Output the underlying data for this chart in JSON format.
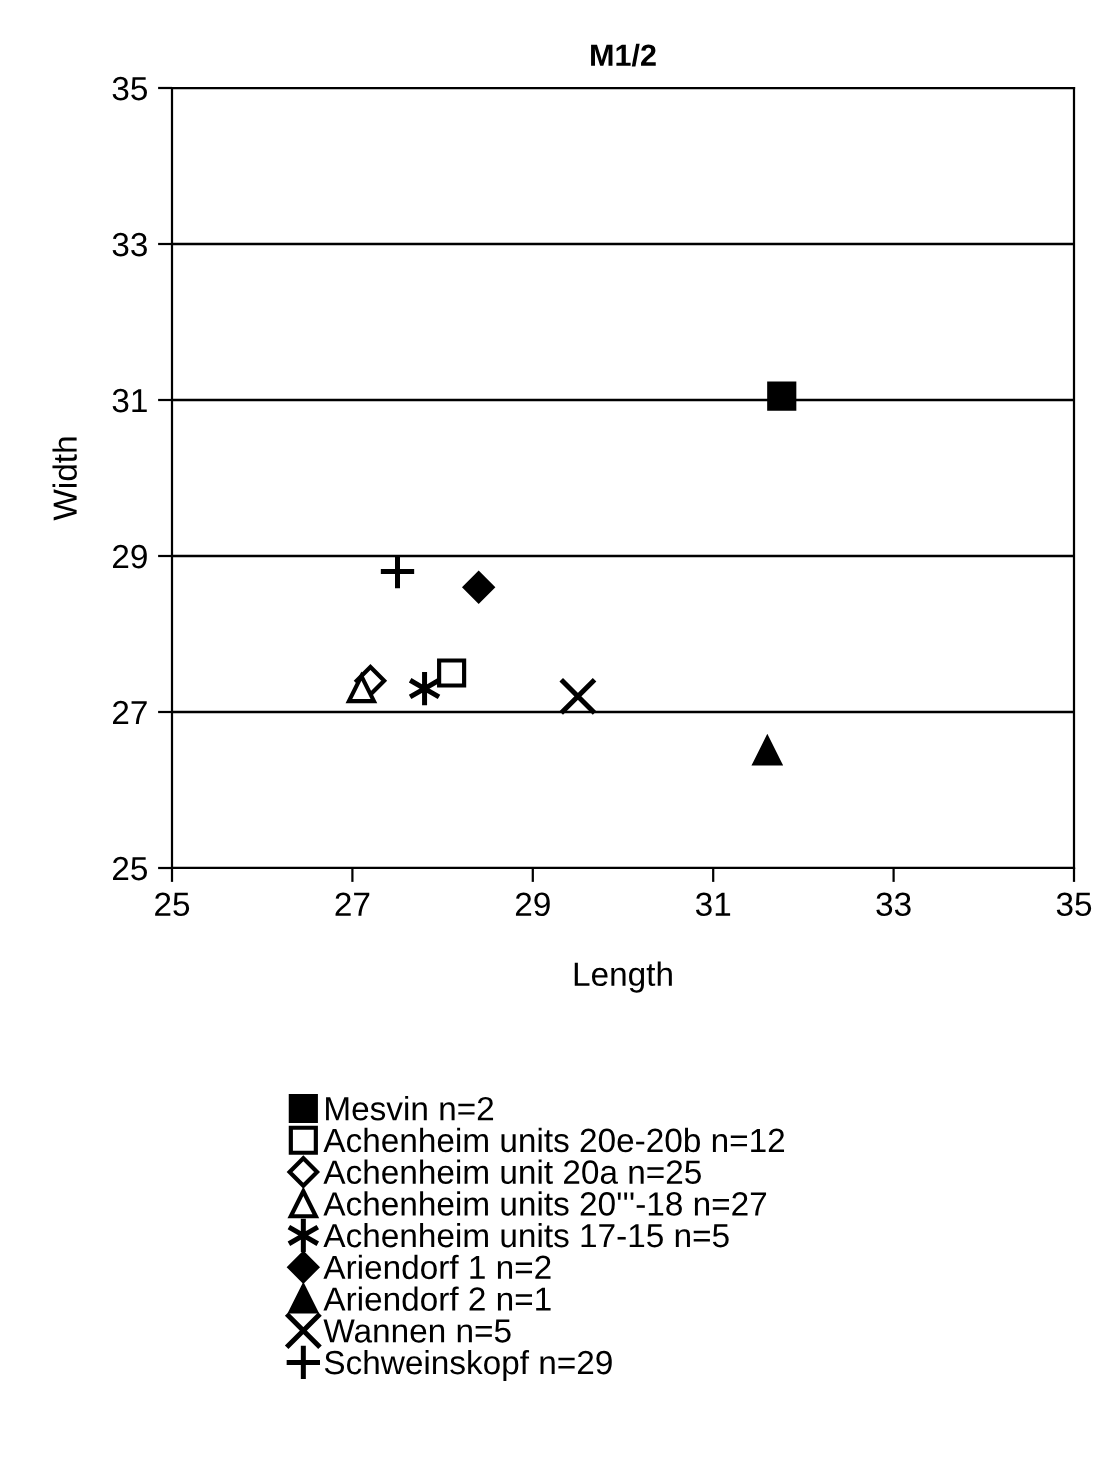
{
  "chart_data": {
    "type": "scatter",
    "title": "M1/2",
    "xlabel": "Length",
    "ylabel": "Width",
    "xlim": [
      25,
      35
    ],
    "ylim": [
      25,
      35
    ],
    "xticks": [
      25,
      27,
      29,
      31,
      33,
      35
    ],
    "yticks": [
      25,
      27,
      29,
      31,
      33,
      35
    ],
    "grid": "y",
    "legend": "bottom",
    "series": [
      {
        "name": "Mesvin n=2",
        "color": "#000000",
        "marker": "square",
        "x": [
          31.76
        ],
        "values": [
          31.05
        ]
      },
      {
        "name": "Achenheim units 20e-20b n=12",
        "color": "#ffffff",
        "marker": "square",
        "x": [
          28.1
        ],
        "values": [
          27.5
        ]
      },
      {
        "name": "Achenheim unit 20a n=25",
        "color": "#ffffff",
        "marker": "diamond",
        "x": [
          27.2
        ],
        "values": [
          27.4
        ]
      },
      {
        "name": "Achenheim units 20'''-18 n=27",
        "color": "#ffffff",
        "marker": "triangle",
        "x": [
          27.1
        ],
        "values": [
          27.3
        ]
      },
      {
        "name": "Achenheim units 17-15 n=5",
        "color": "#000000",
        "x": [
          27.8
        ],
        "values": [
          27.3
        ]
      },
      {
        "name": "Ariendorf 1 n=2",
        "color": "#000000",
        "marker": "diamond",
        "x": [
          28.4
        ],
        "values": [
          28.6
        ]
      },
      {
        "name": "Ariendorf 2 n=1",
        "color": "#000000",
        "marker": "triangle",
        "x": [
          31.6
        ],
        "values": [
          26.5
        ]
      },
      {
        "name": "Wannen n=5",
        "color": "#000000",
        "marker": "cross",
        "x": [
          29.5
        ],
        "values": [
          27.2
        ]
      },
      {
        "name": "Schweinskopf n=29",
        "color": "#000000",
        "marker": "plus",
        "x": [
          27.5
        ],
        "values": [
          28.8
        ]
      }
    ]
  }
}
